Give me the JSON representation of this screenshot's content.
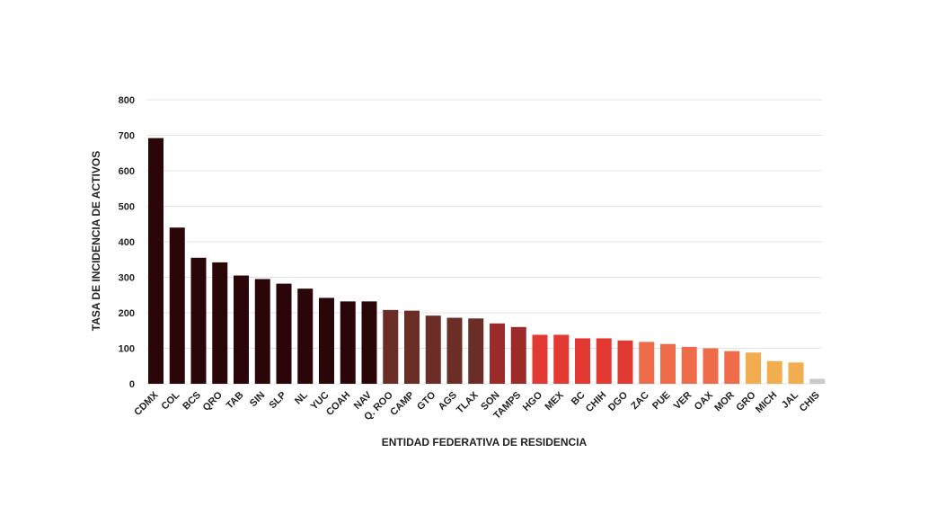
{
  "chart_data": {
    "type": "bar",
    "title": "",
    "xlabel": "ENTIDAD FEDERATIVA DE RESIDENCIA",
    "ylabel": "TASA DE INCIDENCIA DE ACTIVOS",
    "ylim": [
      0,
      800
    ],
    "yticks": [
      "0",
      "100",
      "200",
      "300",
      "400",
      "500",
      "600",
      "700",
      "800"
    ],
    "grid": true,
    "categories": [
      "CDMX",
      "COL",
      "BCS",
      "QRO",
      "TAB",
      "SIN",
      "SLP",
      "NL",
      "YUC",
      "COAH",
      "NAV",
      "Q. ROO",
      "CAMP",
      "GTO",
      "AGS",
      "TLAX",
      "SON",
      "TAMPS",
      "HGO",
      "MEX",
      "BC",
      "CHIH",
      "DGO",
      "ZAC",
      "PUE",
      "VER",
      "OAX",
      "MOR",
      "GRO",
      "MICH",
      "JAL",
      "CHIS"
    ],
    "values": [
      692,
      440,
      355,
      342,
      305,
      295,
      282,
      268,
      242,
      232,
      232,
      208,
      206,
      192,
      186,
      184,
      170,
      160,
      138,
      138,
      128,
      128,
      122,
      118,
      112,
      104,
      100,
      92,
      88,
      64,
      60,
      14
    ],
    "colors": [
      "#2a0608",
      "#2a0608",
      "#2a0608",
      "#2a0608",
      "#2a0608",
      "#2a0608",
      "#2a0608",
      "#2a0608",
      "#2a0608",
      "#2a0608",
      "#2a0608",
      "#6b2e26",
      "#6b2e26",
      "#6b2e26",
      "#6b2e26",
      "#6b2e26",
      "#9c2a28",
      "#9c2a28",
      "#e23a32",
      "#e23a32",
      "#e23a32",
      "#e23a32",
      "#e23a32",
      "#ef6c4a",
      "#ef6c4a",
      "#ef6c4a",
      "#ef6c4a",
      "#ef6c4a",
      "#f2ad4e",
      "#f2ad4e",
      "#f2ad4e",
      "#c9c9c9"
    ]
  }
}
